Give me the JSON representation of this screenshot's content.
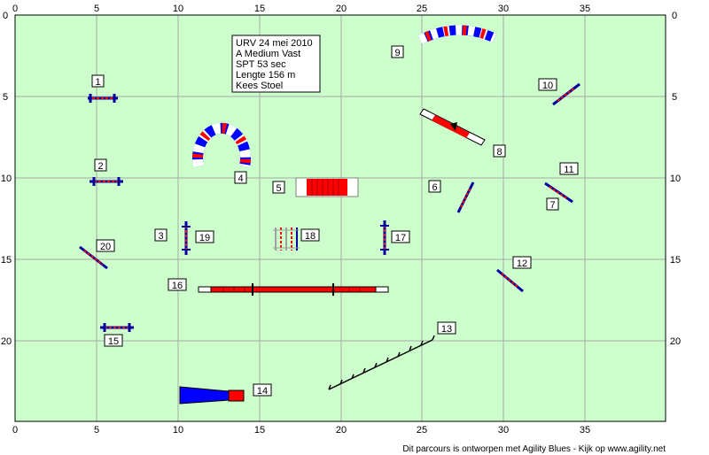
{
  "course": {
    "info_lines": [
      "URV 24 mei 2010",
      "A Medium Vast",
      "SPT 53 sec",
      "Lengte 156 m",
      "Kees Stoel"
    ]
  },
  "axes": {
    "x_ticks": [
      "0",
      "5",
      "10",
      "15",
      "20",
      "25",
      "30",
      "35"
    ],
    "y_ticks": [
      "0",
      "5",
      "10",
      "15",
      "20"
    ]
  },
  "obstacle_numbers": [
    "1",
    "2",
    "3",
    "4",
    "5",
    "6",
    "7",
    "8",
    "9",
    "10",
    "11",
    "12",
    "13",
    "14",
    "15",
    "16",
    "17",
    "18",
    "19",
    "20"
  ],
  "footer": {
    "credit": "Dit parcours is ontworpen met Agility Blues - Kijk op www.agility.net"
  },
  "colors": {
    "field": "#ccffcc",
    "grid": "#a8a8a8",
    "pole_red": "#ff0000",
    "wing_blue": "#0000a0",
    "tunnel_blue": "#0000ff"
  }
}
